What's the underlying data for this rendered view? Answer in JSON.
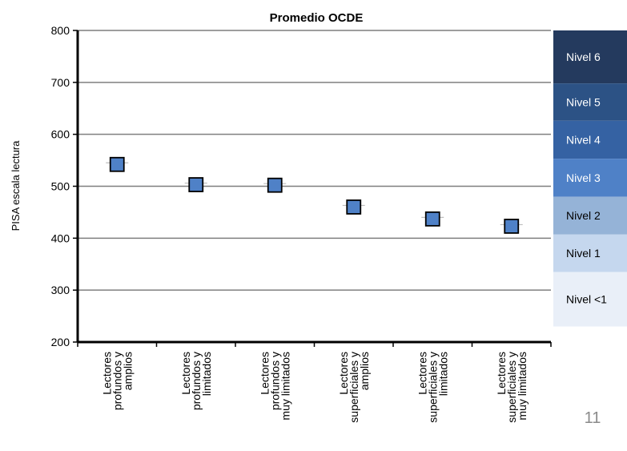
{
  "chart_data": {
    "type": "scatter",
    "title": "Promedio OCDE",
    "ylabel": "PISA escala lectura",
    "xlabel": "",
    "ylim": [
      200,
      800
    ],
    "yticks": [
      200,
      300,
      400,
      500,
      600,
      700,
      800
    ],
    "grid": true,
    "categories": [
      [
        "Lectores",
        "profundos y",
        "amplios"
      ],
      [
        "Lectores",
        "profundos y",
        "limitados"
      ],
      [
        "Lectores",
        "profundos y",
        "muy limitados"
      ],
      [
        "Lectores",
        "superficiales y",
        "amplios"
      ],
      [
        "Lectores",
        "superficiales y",
        "limitados"
      ],
      [
        "Lectores",
        "superficiales y",
        "muy limitados"
      ]
    ],
    "values": [
      542,
      503,
      502,
      460,
      437,
      423
    ],
    "marker_color": "#4f81c7",
    "levels": [
      {
        "label": "Nivel 6",
        "from": 698,
        "to": 800,
        "color": "#243a5e",
        "text_color": "#ffffff"
      },
      {
        "label": "Nivel 5",
        "from": 626,
        "to": 698,
        "color": "#2c5285",
        "text_color": "#ffffff"
      },
      {
        "label": "Nivel 4",
        "from": 553,
        "to": 626,
        "color": "#3562a3",
        "text_color": "#ffffff"
      },
      {
        "label": "Nivel 3",
        "from": 480,
        "to": 553,
        "color": "#4f81c7",
        "text_color": "#ffffff"
      },
      {
        "label": "Nivel 2",
        "from": 407,
        "to": 480,
        "color": "#95b3d7",
        "text_color": "#000000"
      },
      {
        "label": "Nivel 1",
        "from": 335,
        "to": 407,
        "color": "#c5d7ee",
        "text_color": "#000000"
      },
      {
        "label": "Nivel <1",
        "from": 230,
        "to": 335,
        "color": "#e9eff8",
        "text_color": "#000000"
      }
    ]
  },
  "slide": {
    "page_number": "11"
  }
}
